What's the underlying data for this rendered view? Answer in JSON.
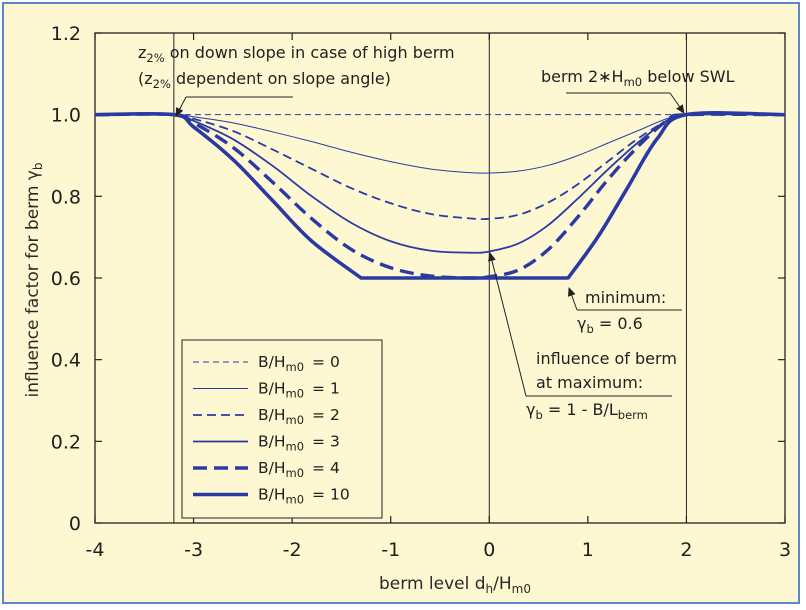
{
  "chart_data": {
    "type": "line",
    "xlabel": {
      "main": "berm level d",
      "sub": "h",
      "tail": "/H",
      "sub2": "m0"
    },
    "ylabel": {
      "main": "influence factor for berm γ",
      "sub": "b"
    },
    "xlim": [
      -4,
      3
    ],
    "ylim": [
      0,
      1.2
    ],
    "x_ticks": [
      "-4",
      "-3",
      "-2",
      "-1",
      "0",
      "1",
      "2",
      "3"
    ],
    "y_ticks": [
      "0",
      "0.2",
      "0.4",
      "0.6",
      "0.8",
      "1.0",
      "1.2"
    ],
    "grid": false,
    "vertical_lines": [
      -3.2,
      0,
      2
    ],
    "series": [
      {
        "name": "B/Hm0 = 0",
        "style": "dashed-thin",
        "x": [
          -4,
          -3.2,
          2,
          3
        ],
        "y": [
          1.0,
          1.0,
          1.0,
          1.0
        ]
      },
      {
        "name": "B/Hm0 = 1",
        "style": "solid-thin",
        "x": [
          -4,
          -3.2,
          -3.0,
          -2.6,
          -2.2,
          -1.8,
          -1.4,
          -1.0,
          -0.6,
          -0.2,
          0,
          0.3,
          0.6,
          0.9,
          1.2,
          1.5,
          1.8,
          2,
          3
        ],
        "y": [
          1.0,
          1.0,
          0.995,
          0.98,
          0.958,
          0.934,
          0.908,
          0.885,
          0.867,
          0.858,
          0.857,
          0.862,
          0.876,
          0.9,
          0.93,
          0.96,
          0.99,
          1.0,
          1.0
        ]
      },
      {
        "name": "B/Hm0 = 2",
        "style": "dashed-medium",
        "x": [
          -4,
          -3.2,
          -3.0,
          -2.6,
          -2.2,
          -1.8,
          -1.4,
          -1.0,
          -0.6,
          -0.2,
          0,
          0.3,
          0.6,
          0.9,
          1.2,
          1.5,
          1.8,
          2,
          3
        ],
        "y": [
          1.0,
          1.0,
          0.99,
          0.96,
          0.915,
          0.867,
          0.82,
          0.783,
          0.757,
          0.746,
          0.745,
          0.755,
          0.785,
          0.83,
          0.885,
          0.94,
          0.985,
          1.0,
          1.0
        ]
      },
      {
        "name": "B/Hm0 = 3",
        "style": "solid-medium",
        "x": [
          -4,
          -3.2,
          -3.0,
          -2.6,
          -2.2,
          -1.8,
          -1.4,
          -1.0,
          -0.6,
          -0.2,
          0,
          0.3,
          0.6,
          0.9,
          1.2,
          1.5,
          1.8,
          2,
          3
        ],
        "y": [
          1.0,
          1.0,
          0.985,
          0.94,
          0.875,
          0.8,
          0.735,
          0.69,
          0.667,
          0.662,
          0.665,
          0.685,
          0.73,
          0.795,
          0.865,
          0.93,
          0.985,
          1.0,
          1.0
        ]
      },
      {
        "name": "B/Hm0 = 4",
        "style": "dashed-thick",
        "x": [
          -4,
          -3.2,
          -3.0,
          -2.6,
          -2.2,
          -1.8,
          -1.4,
          -1.0,
          -0.6,
          -0.2,
          0,
          0.3,
          0.6,
          0.9,
          1.2,
          1.5,
          1.8,
          2,
          3
        ],
        "y": [
          1.0,
          1.0,
          0.98,
          0.92,
          0.835,
          0.745,
          0.67,
          0.625,
          0.605,
          0.6,
          0.603,
          0.62,
          0.67,
          0.75,
          0.84,
          0.92,
          0.985,
          1.0,
          1.0
        ]
      },
      {
        "name": "B/Hm0 = 10",
        "style": "solid-thick",
        "x": [
          -4,
          -3.2,
          -3.0,
          -2.6,
          -2.2,
          -1.8,
          -1.3,
          0.8,
          1.1,
          1.4,
          1.7,
          2,
          3
        ],
        "y": [
          1.0,
          1.0,
          0.97,
          0.89,
          0.79,
          0.69,
          0.6,
          0.6,
          0.7,
          0.82,
          0.94,
          1.0,
          1.0
        ]
      }
    ],
    "legend": {
      "position": "bottom-left",
      "entries": [
        {
          "lhs": "B/H",
          "sub": "m0",
          "rhs": "=  0"
        },
        {
          "lhs": "B/H",
          "sub": "m0",
          "rhs": "=  1"
        },
        {
          "lhs": "B/H",
          "sub": "m0",
          "rhs": "=  2"
        },
        {
          "lhs": "B/H",
          "sub": "m0",
          "rhs": "=  3"
        },
        {
          "lhs": "B/H",
          "sub": "m0",
          "rhs": "=  4"
        },
        {
          "lhs": "B/H",
          "sub": "m0",
          "rhs": "= 10"
        }
      ]
    },
    "annotations": {
      "high_berm": {
        "line1": {
          "a": "z",
          "sub": "2%",
          "b": " on down slope in case of high berm"
        },
        "line2": {
          "a": "(z",
          "sub": "2%",
          "b": " dependent on slope angle)"
        }
      },
      "below_swl": {
        "a": "berm 2∗H",
        "sub": "m0",
        "b": " below SWL"
      },
      "minimum": {
        "line1": "minimum:",
        "line2": {
          "a": "γ",
          "sub": "b",
          "b": " = 0.6"
        }
      },
      "maximum": {
        "line1": "influence of berm",
        "line2": "at maximum:",
        "line3": {
          "a": "γ",
          "sub": "b",
          "b": " = 1 - B/L",
          "sub2": "berm"
        }
      }
    },
    "colors": {
      "series": "#2b3aa3",
      "axis": "#222222",
      "background": "#fdf8d2",
      "frame": "#5b86c8"
    }
  }
}
